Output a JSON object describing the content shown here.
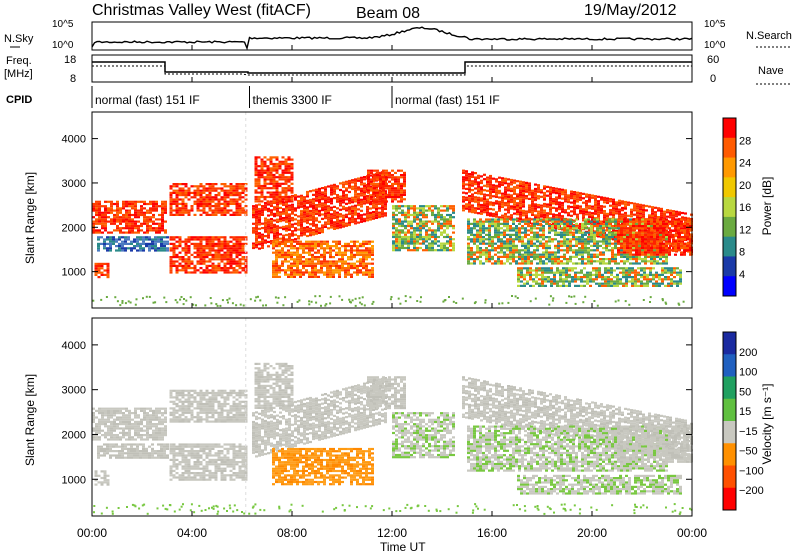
{
  "header": {
    "station": "Christmas Valley West (fitACF)",
    "beam": "Beam 08",
    "date": "19/May/2012"
  },
  "summary": {
    "nsky_label": "N.Sky",
    "nsearch_label": "N.Search",
    "freq_label_1": "Freq.",
    "freq_label_2": "[MHz]",
    "nave_label": "Nave",
    "cpid_label": "CPID",
    "left_ticks_noise": [
      "10^5",
      "10^0"
    ],
    "right_ticks_noise": [
      "10^5",
      "10^0"
    ],
    "left_ticks_freq": [
      "18",
      "8"
    ],
    "right_ticks_nave": [
      "60",
      "0"
    ]
  },
  "cpid_segments": [
    {
      "label": "normal (fast) 151 IF",
      "start_hour": 0
    },
    {
      "label": "themis 3300 IF",
      "start_hour": 6.3
    },
    {
      "label": "normal (fast) 151 IF",
      "start_hour": 12
    }
  ],
  "chart_data": [
    {
      "type": "heatmap",
      "name": "power",
      "ylabel": "Slant Range [km]",
      "x_ticks": [
        "00:00",
        "04:00",
        "08:00",
        "12:00",
        "16:00",
        "20:00",
        "00:00"
      ],
      "x_range_hours": [
        0,
        24
      ],
      "y_ticks": [
        1000,
        2000,
        3000,
        4000
      ],
      "y_range_km": [
        180,
        4600
      ],
      "colorbar_label": "Power [dB]",
      "colorbar_ticks": [
        "28",
        "24",
        "20",
        "16",
        "12",
        "8",
        "4"
      ],
      "colorbar_colors": [
        "#ff0000",
        "#ff5a00",
        "#ff9900",
        "#f0c800",
        "#b8d840",
        "#6aaa40",
        "#2a8a8a",
        "#1a3aa8",
        "#0000ff"
      ]
    },
    {
      "type": "heatmap",
      "name": "velocity",
      "ylabel": "Slant Range [km]",
      "xlabel": "Time UT",
      "x_ticks": [
        "00:00",
        "04:00",
        "08:00",
        "12:00",
        "16:00",
        "20:00",
        "00:00"
      ],
      "x_range_hours": [
        0,
        24
      ],
      "y_ticks": [
        1000,
        2000,
        3000,
        4000
      ],
      "y_range_km": [
        180,
        4600
      ],
      "colorbar_label": "Velocity [m s⁻¹]",
      "colorbar_ticks": [
        "200",
        "100",
        "50",
        "15",
        "−15",
        "−50",
        "−100",
        "−200"
      ],
      "colorbar_colors": [
        "#1a2aa0",
        "#2060c0",
        "#20a060",
        "#60c040",
        "#c8c8c0",
        "#ff9000",
        "#ff5000",
        "#ff0000"
      ]
    }
  ],
  "colors": {
    "gray_scatter": "#c8c8c0",
    "orange_scatter": "#ff9a10",
    "green_scatter": "#78c840",
    "red_scatter": "#ff2000"
  }
}
